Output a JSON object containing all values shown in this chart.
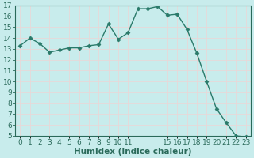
{
  "x": [
    0,
    1,
    2,
    3,
    4,
    5,
    6,
    7,
    8,
    9,
    10,
    11,
    12,
    13,
    14,
    15,
    16,
    17,
    18,
    19,
    20,
    21,
    22,
    23
  ],
  "y": [
    13.3,
    14.0,
    13.5,
    12.7,
    12.9,
    13.1,
    13.1,
    13.3,
    13.4,
    15.3,
    13.9,
    14.5,
    16.7,
    16.7,
    16.9,
    16.1,
    16.2,
    14.8,
    12.6,
    10.0,
    7.5,
    6.2,
    5.0,
    4.9
  ],
  "line_color": "#2a7a6a",
  "marker": "D",
  "marker_size": 2.5,
  "bg_color": "#c8ecec",
  "grid_color": "#e8d8d8",
  "xlabel": "Humidex (Indice chaleur)",
  "xlabel_fontsize": 7.5,
  "tick_color": "#2a6a5a",
  "tick_fontsize": 6.5,
  "ylim": [
    5,
    17
  ],
  "xlim": [
    -0.5,
    23.5
  ],
  "yticks": [
    5,
    6,
    7,
    8,
    9,
    10,
    11,
    12,
    13,
    14,
    15,
    16,
    17
  ],
  "xtick_positions": [
    0,
    1,
    2,
    3,
    4,
    5,
    6,
    7,
    8,
    9,
    10,
    11,
    15,
    16,
    17,
    18,
    19,
    20,
    21,
    22,
    23
  ],
  "xtick_labels": [
    "0",
    "1",
    "2",
    "3",
    "4",
    "5",
    "6",
    "7",
    "8",
    "9",
    "10",
    "11",
    "15",
    "16",
    "17",
    "18",
    "19",
    "20",
    "21",
    "22",
    "23"
  ]
}
